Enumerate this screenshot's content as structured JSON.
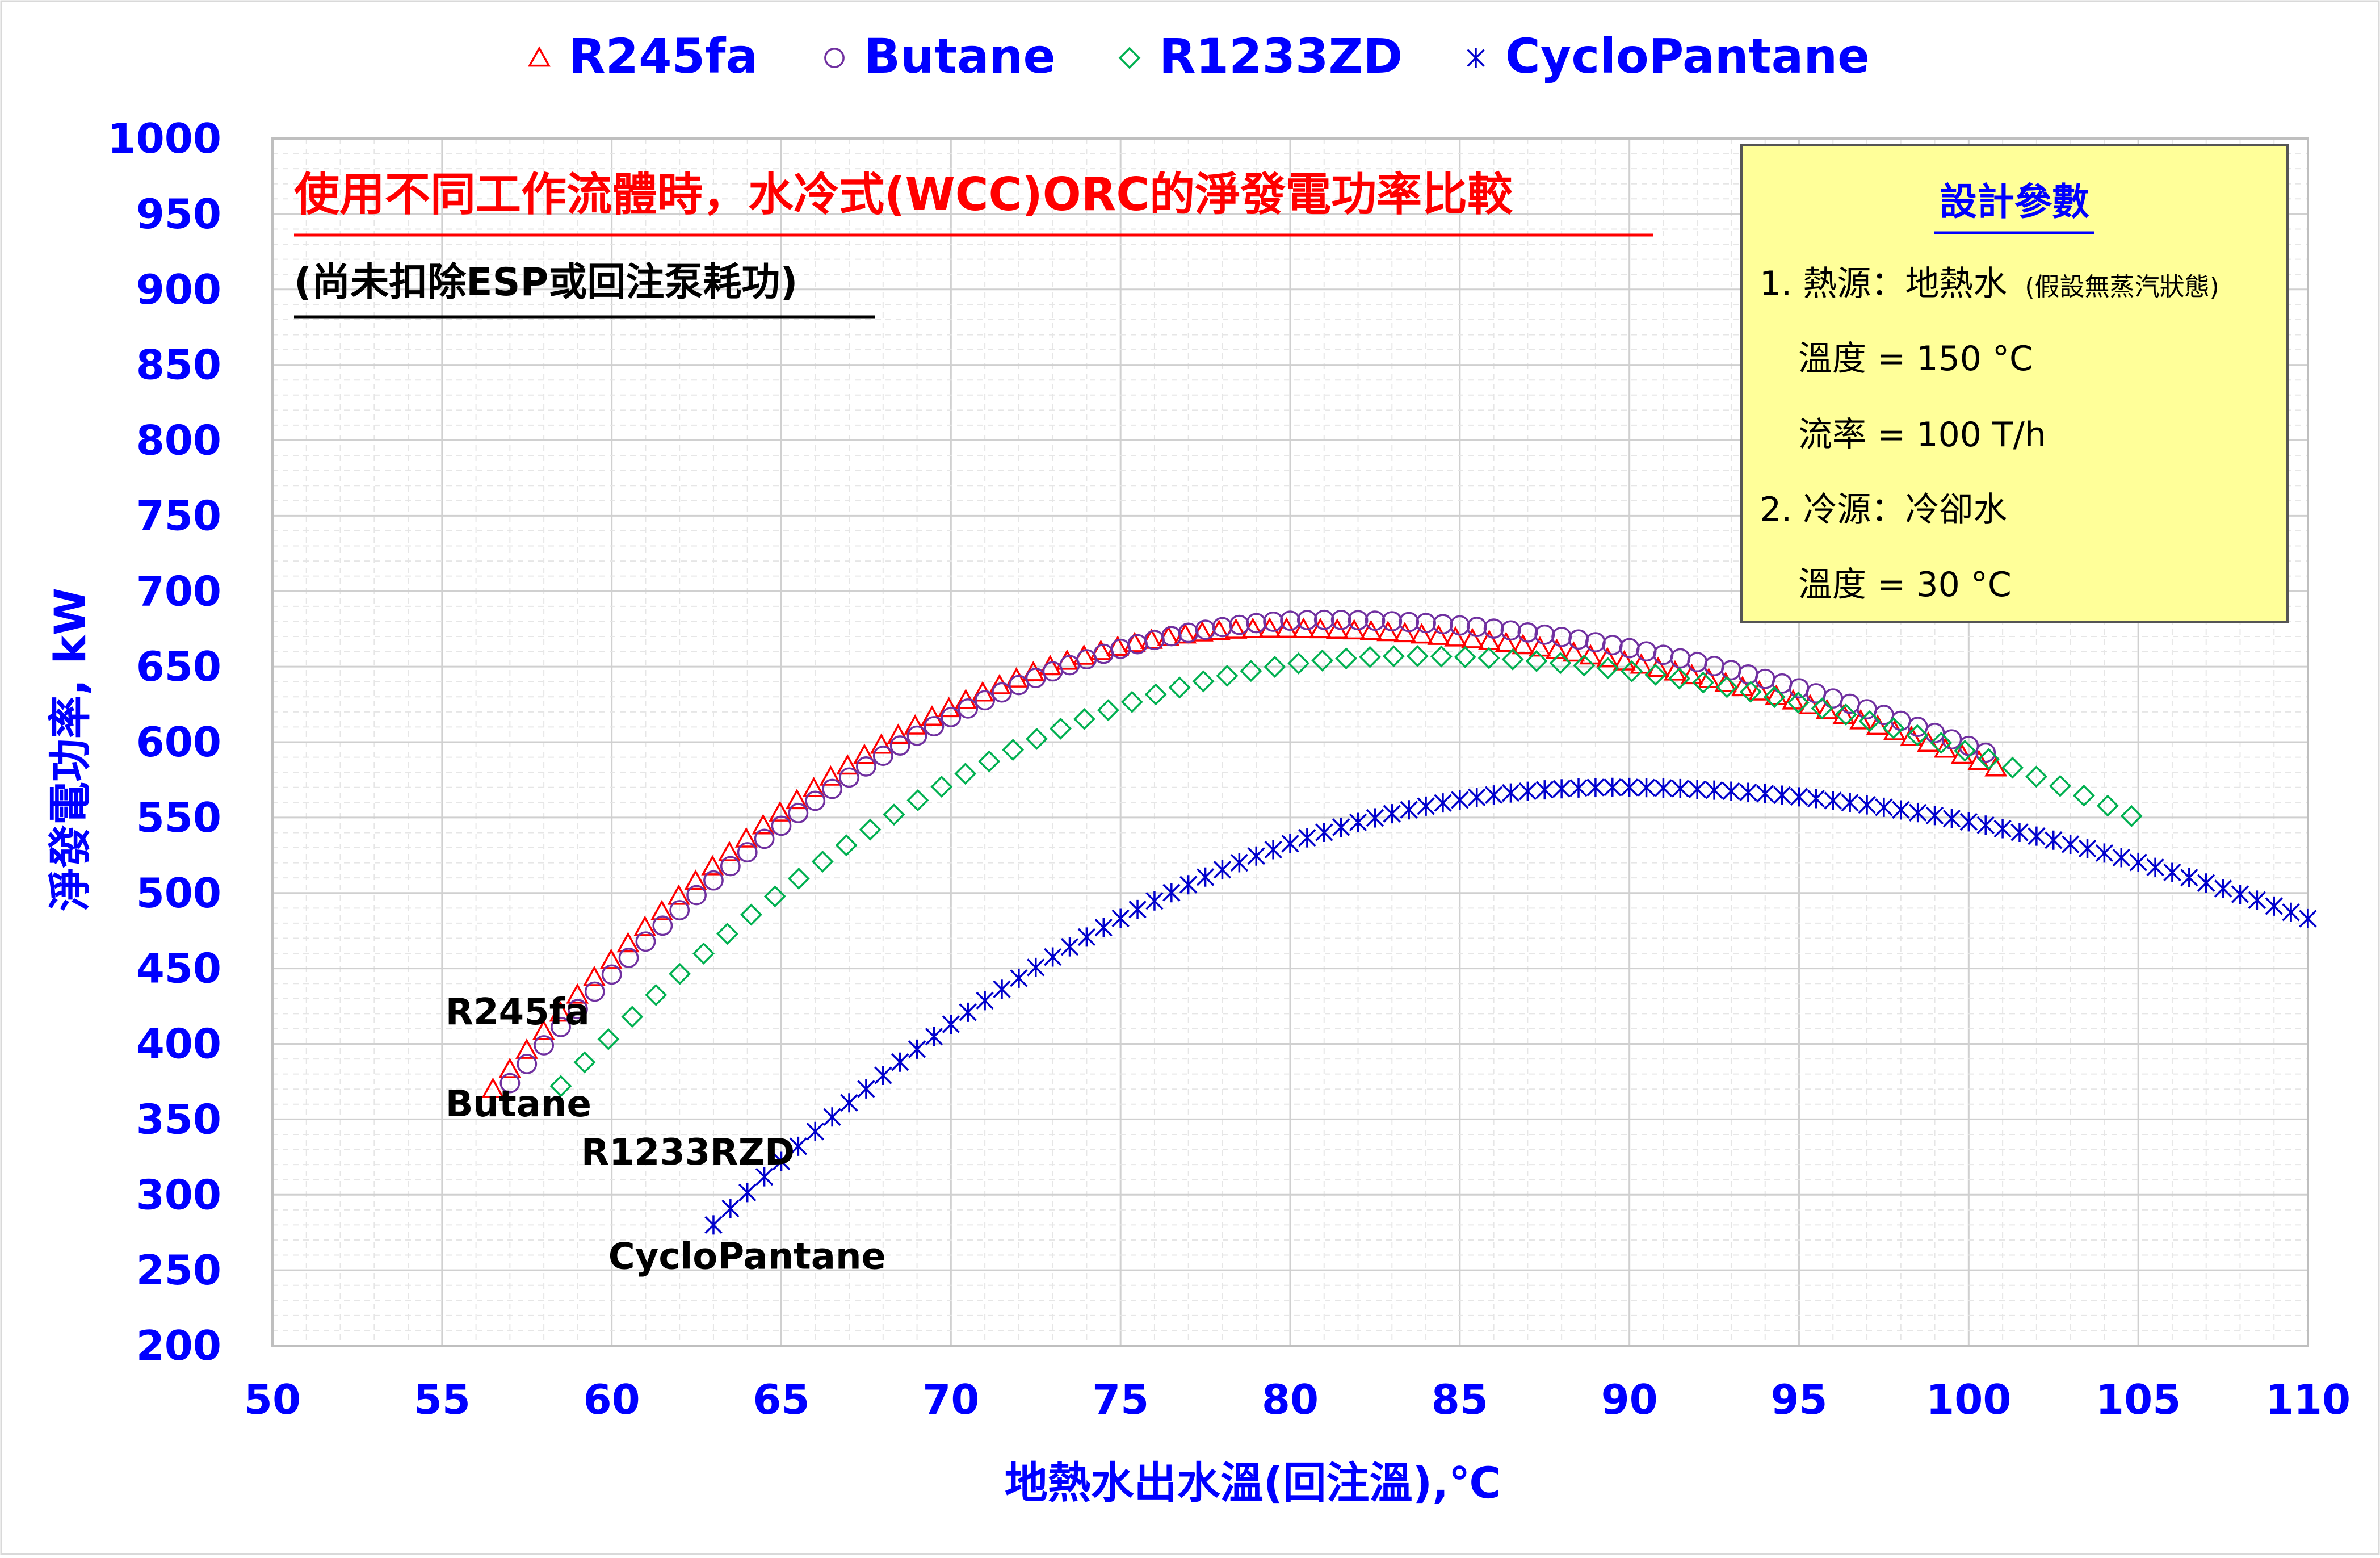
{
  "chart_data": {
    "type": "scatter",
    "title": "使用不同工作流體時，水冷式(WCC)ORC的淨發電功率比較",
    "subtitle": "(尚未扣除ESP或回注泵耗功)",
    "xlabel": "地熱水出水溫(回注溫),℃",
    "ylabel": "淨發電功率, kW",
    "xlim": [
      50,
      110
    ],
    "ylim": [
      200,
      1000
    ],
    "xticks": [
      50,
      55,
      60,
      65,
      70,
      75,
      80,
      85,
      90,
      95,
      100,
      105,
      110
    ],
    "yticks": [
      200,
      250,
      300,
      350,
      400,
      450,
      500,
      550,
      600,
      650,
      700,
      750,
      800,
      850,
      900,
      950,
      1000
    ],
    "grid": true,
    "legend_position": "top",
    "colors": {
      "axis_text": "#0000ff",
      "title": "#ff0000",
      "text": "#000000",
      "grid": "#d9d9d9",
      "param_box": "#ffff99"
    },
    "series": [
      {
        "name": "R245fa",
        "marker": "triangle",
        "color": "#ff0000",
        "x_start": 56.5,
        "x_end": 100.8,
        "x_step": 0.5,
        "x_peak": 79.5,
        "y_start": 370,
        "y_peak": 675,
        "y_end": 583
      },
      {
        "name": "Butane",
        "marker": "circle",
        "color": "#7030a0",
        "x_start": 57.0,
        "x_end": 100.5,
        "x_step": 0.5,
        "x_peak": 81.0,
        "y_start": 374,
        "y_peak": 681,
        "y_end": 593
      },
      {
        "name": "R1233ZD",
        "marker": "diamond",
        "color": "#00b050",
        "x_start": 58.5,
        "x_end": 104.8,
        "x_step": 0.7,
        "x_peak": 83.5,
        "y_start": 372,
        "y_peak": 657,
        "y_end": 551
      },
      {
        "name": "CycloPantane",
        "marker": "star",
        "color": "#0000cc",
        "x_start": 63.0,
        "x_end": 110.0,
        "x_step": 0.5,
        "x_peak": 89.5,
        "y_start": 280,
        "y_peak": 570,
        "y_end": 483
      }
    ],
    "annotations": [
      {
        "text": "R245fa",
        "x": 55.1,
        "y": 413
      },
      {
        "text": "Butane",
        "x": 55.1,
        "y": 352
      },
      {
        "text": "R1233RZD",
        "x": 59.1,
        "y": 320
      },
      {
        "text": "CycloPantane",
        "x": 59.9,
        "y": 251
      }
    ],
    "design_params": {
      "title": "設計參數",
      "lines": [
        {
          "text": "1. 熱源：地熱水",
          "note": "(假設無蒸汽狀態)"
        },
        {
          "text": "溫度 = 150 °C",
          "note": ""
        },
        {
          "text": "流率 = 100 T/h",
          "note": ""
        },
        {
          "text": "2. 冷源：冷卻水",
          "note": ""
        },
        {
          "text": "溫度 = 30 °C",
          "note": ""
        }
      ]
    }
  }
}
